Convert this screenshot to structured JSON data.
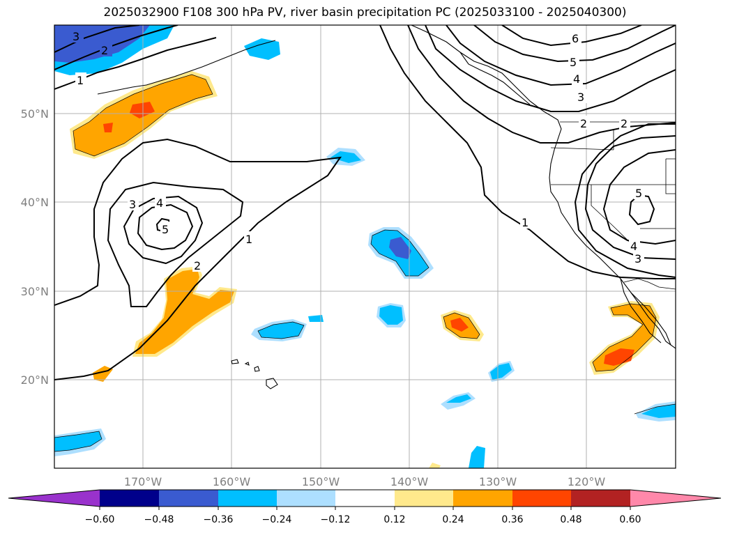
{
  "title": "2025032900 F108 300 hPa PV, river basin precipitation PC (2025033100 - 2025040300)",
  "map": {
    "lon_labels": [
      "170°W",
      "160°W",
      "150°W",
      "140°W",
      "130°W",
      "120°W"
    ],
    "lat_labels": [
      "50°N",
      "40°N",
      "30°N",
      "20°N"
    ],
    "contour_labels": [
      "3",
      "2",
      "1",
      "6",
      "5",
      "4",
      "3",
      "2",
      "2",
      "3",
      "4",
      "5",
      "2",
      "1",
      "4",
      "3",
      "5"
    ],
    "gridlines": true
  },
  "colorbar": {
    "ticks": [
      "−0.60",
      "−0.48",
      "−0.36",
      "−0.24",
      "−0.12",
      "0.12",
      "0.24",
      "0.36",
      "0.48",
      "0.60"
    ],
    "colors": [
      "#9932cc",
      "#00008b",
      "#3a5bd0",
      "#00bfff",
      "#addfff",
      "#ffffff",
      "#ffe98c",
      "#ffa500",
      "#ff4500",
      "#b22222",
      "#ff88aa"
    ],
    "extend": "both"
  }
}
